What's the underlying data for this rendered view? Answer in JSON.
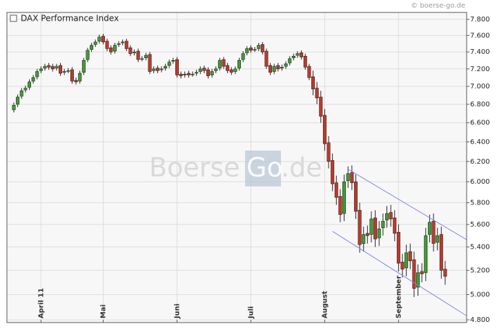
{
  "chart_data": {
    "type": "candlestick",
    "title": "DAX Performance Index",
    "source": "© boerse-go.de",
    "watermark": [
      "Boerse",
      "Go",
      ".de"
    ],
    "log_scale": true,
    "grid": true,
    "up_color": "#3f9f2f",
    "down_color": "#c0392b",
    "trendline_color": "#7f86e8",
    "ylim": [
      4779,
      7888
    ],
    "yticks": [
      {
        "value": 4800,
        "label": "4.800"
      },
      {
        "value": 5000,
        "label": "5.000"
      },
      {
        "value": 5200,
        "label": "5.200"
      },
      {
        "value": 5400,
        "label": "5.400"
      },
      {
        "value": 5600,
        "label": "5.600"
      },
      {
        "value": 5800,
        "label": "5.800"
      },
      {
        "value": 6000,
        "label": "6.000"
      },
      {
        "value": 6200,
        "label": "6.200"
      },
      {
        "value": 6400,
        "label": "6.400"
      },
      {
        "value": 6600,
        "label": "6.600"
      },
      {
        "value": 6800,
        "label": "6.800"
      },
      {
        "value": 7000,
        "label": "7.000"
      },
      {
        "value": 7200,
        "label": "7.200"
      },
      {
        "value": 7400,
        "label": "7.400"
      },
      {
        "value": 7600,
        "label": "7.600"
      },
      {
        "value": 7800,
        "label": "7.800"
      }
    ],
    "categories": [
      null,
      null,
      null,
      null,
      null,
      null,
      null,
      "April 11",
      null,
      null,
      null,
      null,
      null,
      null,
      null,
      null,
      null,
      null,
      null,
      null,
      null,
      null,
      null,
      "Mai",
      null,
      null,
      null,
      null,
      null,
      null,
      null,
      null,
      null,
      null,
      null,
      null,
      null,
      null,
      null,
      null,
      null,
      null,
      "Juni",
      null,
      null,
      null,
      null,
      null,
      null,
      null,
      null,
      null,
      null,
      null,
      null,
      null,
      null,
      null,
      null,
      null,
      null,
      "Juli",
      null,
      null,
      null,
      null,
      null,
      null,
      null,
      null,
      null,
      null,
      null,
      null,
      null,
      null,
      null,
      null,
      null,
      null,
      "August",
      null,
      null,
      null,
      null,
      null,
      null,
      null,
      null,
      null,
      null,
      null,
      null,
      null,
      null,
      null,
      null,
      null,
      null,
      "September",
      null,
      null,
      null,
      null,
      null,
      null,
      null,
      null,
      null,
      null,
      null,
      null
    ],
    "open": [
      6740,
      6800,
      6890,
      6960,
      6990,
      7060,
      7110,
      7180,
      7210,
      7240,
      7230,
      7210,
      7240,
      7160,
      7180,
      7190,
      7070,
      7060,
      7160,
      7310,
      7430,
      7490,
      7530,
      7590,
      7530,
      7450,
      7410,
      7490,
      7510,
      7530,
      7450,
      7390,
      7410,
      7320,
      7330,
      7370,
      7180,
      7210,
      7190,
      7210,
      7240,
      7290,
      7310,
      7140,
      7130,
      7150,
      7140,
      7150,
      7170,
      7210,
      7190,
      7130,
      7180,
      7210,
      7310,
      7240,
      7190,
      7170,
      7210,
      7310,
      7390,
      7450,
      7430,
      7440,
      7490,
      7410,
      7240,
      7170,
      7240,
      7210,
      7230,
      7270,
      7330,
      7360,
      7390,
      7350,
      7230,
      7110,
      6980,
      6880,
      6680,
      6390,
      6210,
      5990,
      5860,
      5700,
      6010,
      6090,
      6000,
      5730,
      5430,
      5520,
      5510,
      5660,
      5480,
      5570,
      5640,
      5710,
      5660,
      5530,
      5270,
      5220,
      5360,
      5290,
      5060,
      5190,
      5180,
      5510,
      5630,
      5440,
      5510,
      5210
    ],
    "high": [
      6820,
      6910,
      6980,
      7010,
      7080,
      7130,
      7200,
      7230,
      7260,
      7270,
      7260,
      7260,
      7270,
      7200,
      7210,
      7220,
      7100,
      7180,
      7330,
      7450,
      7510,
      7550,
      7610,
      7620,
      7560,
      7480,
      7510,
      7530,
      7550,
      7560,
      7480,
      7430,
      7440,
      7350,
      7390,
      7400,
      7230,
      7240,
      7230,
      7260,
      7310,
      7330,
      7340,
      7170,
      7170,
      7180,
      7170,
      7190,
      7230,
      7240,
      7220,
      7200,
      7230,
      7330,
      7340,
      7270,
      7220,
      7230,
      7330,
      7410,
      7470,
      7480,
      7460,
      7510,
      7520,
      7440,
      7270,
      7260,
      7270,
      7250,
      7290,
      7350,
      7380,
      7410,
      7420,
      7380,
      7260,
      7180,
      7050,
      6950,
      6750,
      6460,
      6280,
      6060,
      5930,
      6070,
      6150,
      6160,
      6070,
      5800,
      5580,
      5590,
      5720,
      5730,
      5630,
      5700,
      5770,
      5780,
      5730,
      5600,
      5340,
      5420,
      5430,
      5360,
      5250,
      5260,
      5570,
      5690,
      5700,
      5570,
      5580,
      5280
    ],
    "low": [
      6710,
      6770,
      6860,
      6930,
      6960,
      7030,
      7080,
      7150,
      7180,
      7190,
      7170,
      7180,
      7120,
      7130,
      7150,
      7030,
      7020,
      7030,
      7130,
      7280,
      7400,
      7460,
      7500,
      7490,
      7410,
      7370,
      7380,
      7460,
      7480,
      7410,
      7350,
      7360,
      7280,
      7290,
      7300,
      7140,
      7150,
      7150,
      7160,
      7180,
      7210,
      7260,
      7100,
      7090,
      7100,
      7100,
      7110,
      7120,
      7140,
      7150,
      7090,
      7100,
      7150,
      7180,
      7200,
      7150,
      7130,
      7140,
      7180,
      7280,
      7360,
      7390,
      7400,
      7410,
      7370,
      7200,
      7130,
      7140,
      7170,
      7180,
      7200,
      7240,
      7300,
      7330,
      7310,
      7190,
      7070,
      6900,
      6800,
      6600,
      6310,
      6130,
      5910,
      5780,
      5620,
      5630,
      5940,
      5920,
      5650,
      5350,
      5360,
      5430,
      5440,
      5400,
      5410,
      5500,
      5570,
      5580,
      5450,
      5190,
      5140,
      5150,
      5210,
      4980,
      4990,
      5100,
      5110,
      5440,
      5360,
      5370,
      5130,
      5080
    ],
    "close": [
      6790,
      6880,
      6950,
      6980,
      7050,
      7100,
      7170,
      7200,
      7230,
      7220,
      7200,
      7230,
      7150,
      7170,
      7180,
      7060,
      7050,
      7150,
      7300,
      7420,
      7480,
      7520,
      7580,
      7520,
      7440,
      7400,
      7480,
      7500,
      7520,
      7440,
      7380,
      7400,
      7310,
      7320,
      7360,
      7170,
      7200,
      7180,
      7200,
      7230,
      7280,
      7300,
      7130,
      7120,
      7140,
      7130,
      7140,
      7160,
      7200,
      7180,
      7120,
      7170,
      7200,
      7300,
      7230,
      7180,
      7160,
      7200,
      7300,
      7380,
      7440,
      7420,
      7430,
      7480,
      7400,
      7230,
      7160,
      7230,
      7200,
      7220,
      7260,
      7320,
      7350,
      7380,
      7340,
      7220,
      7100,
      6970,
      6870,
      6670,
      6380,
      6200,
      5980,
      5850,
      5690,
      6000,
      6080,
      5990,
      5720,
      5420,
      5510,
      5500,
      5650,
      5470,
      5560,
      5630,
      5700,
      5650,
      5520,
      5260,
      5210,
      5350,
      5280,
      5050,
      5180,
      5170,
      5500,
      5620,
      5430,
      5500,
      5200,
      5150
    ],
    "trendlines": [
      {
        "x": [
          86,
          116.5
        ],
        "values": [
          6123,
          5464
        ]
      },
      {
        "x": [
          82,
          116.5
        ],
        "values": [
          5538,
          4832
        ]
      }
    ]
  }
}
